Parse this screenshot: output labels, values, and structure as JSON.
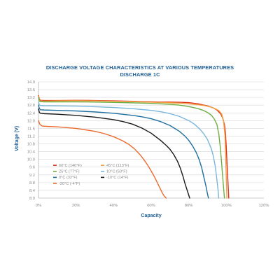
{
  "chart_data": {
    "type": "line",
    "title": "DISCHARGE VOLTAGE CHARACTERISTICS AT VARIOUS TEMPERATURES",
    "subtitle": "DISCHARGE 1C",
    "xlabel": "Capacity",
    "ylabel": "Voltage (V)",
    "xlim": [
      0,
      120
    ],
    "ylim": [
      8.0,
      14.0
    ],
    "x_ticks": [
      "0%",
      "20%",
      "40%",
      "60%",
      "80%",
      "100%",
      "120%"
    ],
    "y_ticks": [
      "8.0",
      "8.4",
      "8.8",
      "9.2",
      "9.6",
      "10.0",
      "10.4",
      "10.8",
      "11.2",
      "11.6",
      "12.0",
      "12.4",
      "12.8",
      "13.2",
      "13.6",
      "14.0"
    ],
    "grid": "horizontal",
    "legend_position": "lower-left",
    "series": [
      {
        "name": "60°C (140°F)",
        "color": "#e0321e",
        "x": [
          0,
          0.5,
          1,
          3,
          10,
          20,
          30,
          40,
          50,
          55,
          60,
          65,
          70,
          75,
          80,
          85,
          90,
          93,
          95,
          97,
          98,
          99,
          99.5,
          100,
          100.5,
          101,
          101.3
        ],
        "y": [
          13.3,
          13.1,
          13.05,
          13.04,
          13.04,
          13.05,
          13.04,
          13.02,
          13.0,
          12.98,
          12.97,
          12.96,
          12.96,
          12.95,
          12.93,
          12.87,
          12.76,
          12.66,
          12.55,
          12.35,
          12.15,
          11.8,
          11.4,
          10.6,
          9.5,
          8.6,
          8.0
        ]
      },
      {
        "name": "45°C (113°F)",
        "color": "#f0a040",
        "x": [
          0,
          0.5,
          1,
          3,
          10,
          20,
          30,
          40,
          50,
          60,
          70,
          75,
          80,
          85,
          88,
          90,
          92,
          94,
          96,
          97.5,
          98.5,
          99.3,
          99.8,
          100.3
        ],
        "y": [
          13.25,
          13.05,
          13.02,
          13.01,
          13.02,
          13.03,
          13.02,
          13.0,
          12.98,
          12.95,
          12.92,
          12.9,
          12.87,
          12.82,
          12.78,
          12.74,
          12.69,
          12.62,
          12.52,
          12.35,
          12.0,
          11.2,
          9.6,
          8.0
        ]
      },
      {
        "name": "25°C (77°F)",
        "color": "#6cae44",
        "x": [
          0,
          0.5,
          1,
          3,
          10,
          20,
          30,
          40,
          50,
          60,
          70,
          75,
          80,
          85,
          88,
          90,
          92,
          93.5,
          95,
          96,
          96.8,
          97.5,
          98.3,
          99
        ],
        "y": [
          13.2,
          13.0,
          12.98,
          12.97,
          12.97,
          12.97,
          12.96,
          12.94,
          12.92,
          12.89,
          12.84,
          12.8,
          12.73,
          12.62,
          12.52,
          12.42,
          12.28,
          12.1,
          11.8,
          11.3,
          10.6,
          9.8,
          8.8,
          8.0
        ]
      },
      {
        "name": "10°C (50°F)",
        "color": "#7ab6dc",
        "x": [
          0,
          0.5,
          1,
          3,
          10,
          20,
          30,
          40,
          50,
          60,
          65,
          70,
          75,
          80,
          83,
          86,
          88,
          90,
          92,
          93,
          94,
          94.8,
          95.5,
          96
        ],
        "y": [
          12.95,
          12.82,
          12.78,
          12.77,
          12.76,
          12.75,
          12.72,
          12.68,
          12.62,
          12.53,
          12.46,
          12.36,
          12.22,
          12.0,
          11.82,
          11.55,
          11.32,
          11.02,
          10.55,
          10.2,
          9.7,
          9.1,
          8.5,
          8.0
        ]
      },
      {
        "name": "0°C (32°F)",
        "color": "#1f6fa0",
        "x": [
          0,
          0.5,
          1,
          3,
          10,
          20,
          30,
          40,
          50,
          55,
          60,
          65,
          70,
          75,
          78,
          80,
          82,
          84,
          85.5,
          86.8,
          88,
          89.2,
          90,
          90.5
        ],
        "y": [
          12.8,
          12.62,
          12.56,
          12.55,
          12.53,
          12.5,
          12.45,
          12.38,
          12.27,
          12.2,
          12.1,
          11.95,
          11.75,
          11.45,
          11.2,
          10.98,
          10.7,
          10.35,
          10.0,
          9.6,
          9.1,
          8.6,
          8.2,
          8.0
        ]
      },
      {
        "name": "-10°C (14°F)",
        "color": "#1a1a1a",
        "x": [
          0,
          0.5,
          1,
          3,
          10,
          20,
          30,
          40,
          45,
          50,
          55,
          60,
          65,
          68,
          70,
          72,
          74,
          75.5,
          77,
          78,
          79,
          80,
          80.5
        ],
        "y": [
          12.6,
          12.42,
          12.38,
          12.36,
          12.33,
          12.27,
          12.18,
          12.05,
          11.95,
          11.82,
          11.62,
          11.35,
          10.98,
          10.72,
          10.52,
          10.25,
          9.9,
          9.55,
          9.1,
          8.75,
          8.45,
          8.15,
          8.0
        ]
      },
      {
        "name": "-20°C (-4°F)",
        "color": "#ec6a2c",
        "x": [
          0,
          0.3,
          0.8,
          2,
          5,
          10,
          20,
          30,
          35,
          40,
          45,
          48,
          51,
          54,
          56,
          58,
          60,
          62,
          63.5,
          65,
          66,
          67,
          68
        ],
        "y": [
          12.0,
          11.92,
          11.8,
          11.72,
          11.7,
          11.68,
          11.6,
          11.45,
          11.33,
          11.17,
          10.95,
          10.78,
          10.55,
          10.25,
          10.0,
          9.72,
          9.4,
          9.05,
          8.75,
          8.45,
          8.25,
          8.1,
          8.0
        ]
      }
    ]
  }
}
